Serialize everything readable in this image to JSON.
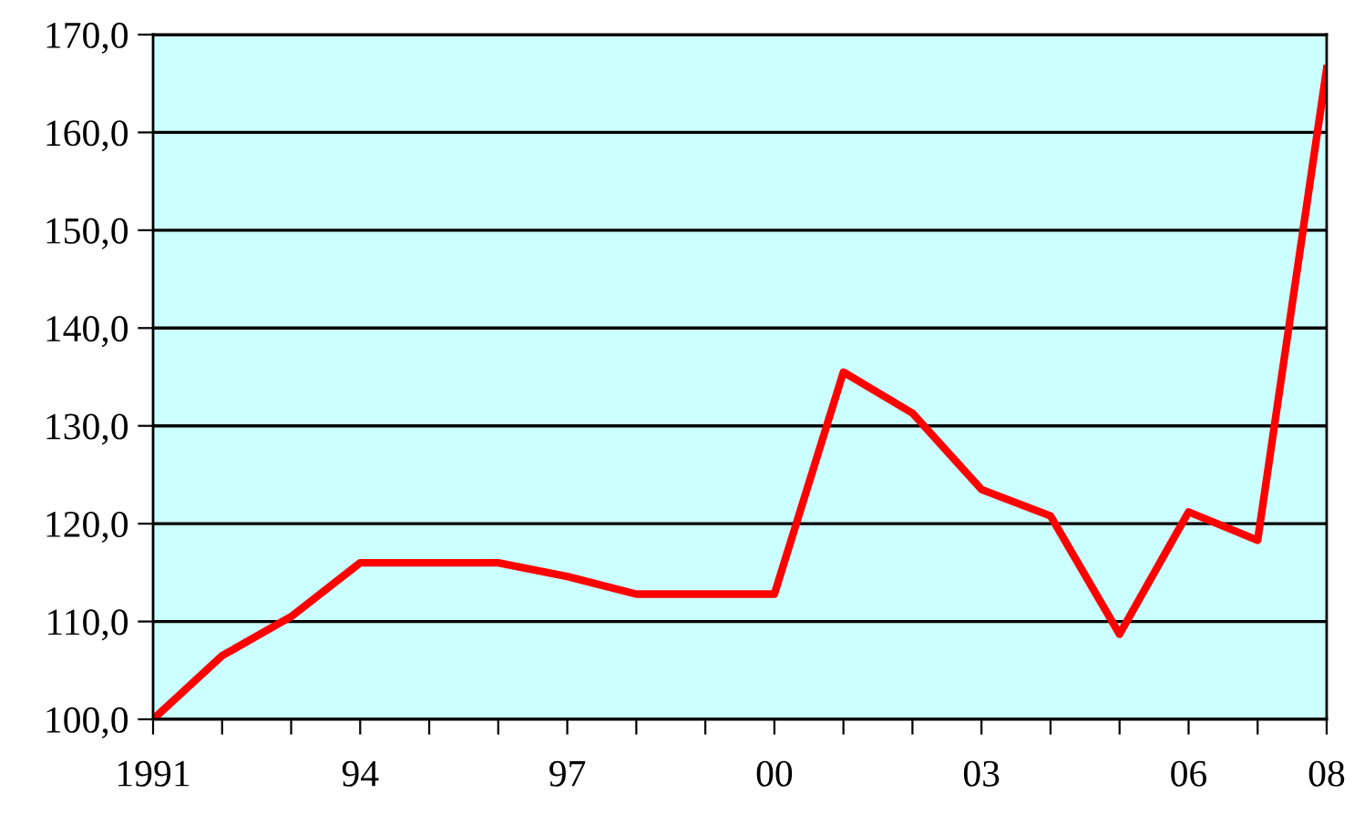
{
  "chart_data": {
    "type": "line",
    "x": [
      1991,
      1992,
      1993,
      1994,
      1995,
      1996,
      1997,
      1998,
      1999,
      2000,
      2001,
      2002,
      2003,
      2004,
      2005,
      2006,
      2007,
      2008
    ],
    "series": [
      {
        "color": "#ff0000",
        "values": [
          100.0,
          106.5,
          110.5,
          116.0,
          116.0,
          116.0,
          114.6,
          112.8,
          112.8,
          112.8,
          135.5,
          131.3,
          123.5,
          120.8,
          108.7,
          121.2,
          118.3,
          166.5
        ]
      }
    ],
    "xlim": [
      1991,
      2008
    ],
    "xticks": [
      {
        "value": 1991,
        "label": "1991"
      },
      {
        "value": 1992,
        "label": null
      },
      {
        "value": 1993,
        "label": null
      },
      {
        "value": 1994,
        "label": "94"
      },
      {
        "value": 1995,
        "label": null
      },
      {
        "value": 1996,
        "label": null
      },
      {
        "value": 1997,
        "label": "97"
      },
      {
        "value": 1998,
        "label": null
      },
      {
        "value": 1999,
        "label": null
      },
      {
        "value": 2000,
        "label": "00"
      },
      {
        "value": 2001,
        "label": null
      },
      {
        "value": 2002,
        "label": null
      },
      {
        "value": 2003,
        "label": "03"
      },
      {
        "value": 2004,
        "label": null
      },
      {
        "value": 2005,
        "label": null
      },
      {
        "value": 2006,
        "label": "06"
      },
      {
        "value": 2007,
        "label": null
      },
      {
        "value": 2008,
        "label": "08"
      }
    ],
    "ylim": [
      100,
      170
    ],
    "yticks": [
      {
        "value": 100,
        "label": "100,0"
      },
      {
        "value": 110,
        "label": "110,0"
      },
      {
        "value": 120,
        "label": "120,0"
      },
      {
        "value": 130,
        "label": "130,0"
      },
      {
        "value": 140,
        "label": "140,0"
      },
      {
        "value": 150,
        "label": "150,0"
      },
      {
        "value": 160,
        "label": "160,0"
      },
      {
        "value": 170,
        "label": "170,0"
      }
    ],
    "grid": "y",
    "legend": false,
    "marker": "none",
    "line_style": "solid"
  }
}
